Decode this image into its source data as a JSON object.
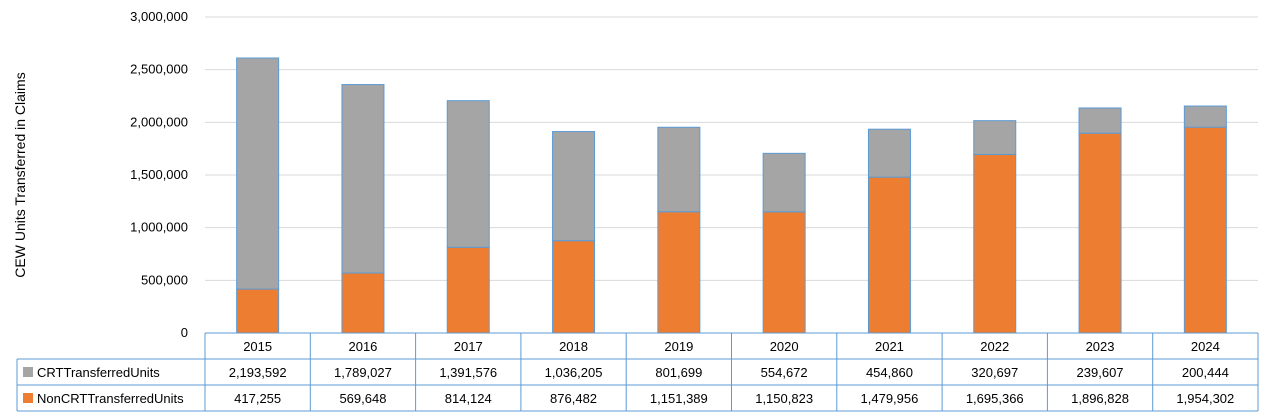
{
  "chart_data": {
    "type": "bar",
    "stacked": true,
    "title": "",
    "xlabel": "",
    "ylabel": "CEW Units Transferred in Claims",
    "ylim": [
      0,
      3000000
    ],
    "y_ticks": [
      0,
      500000,
      1000000,
      1500000,
      2000000,
      2500000,
      3000000
    ],
    "y_tick_labels": [
      "0",
      "500,000",
      "1,000,000",
      "1,500,000",
      "2,000,000",
      "2,500,000",
      "3,000,000"
    ],
    "categories": [
      "2015",
      "2016",
      "2017",
      "2018",
      "2019",
      "2020",
      "2021",
      "2022",
      "2023",
      "2024"
    ],
    "series": [
      {
        "name": "NonCRTTransferredUnits",
        "color": "#ED7D31",
        "values": [
          417255,
          569648,
          814124,
          876482,
          1151389,
          1150823,
          1479956,
          1695366,
          1896828,
          1954302
        ],
        "labels": [
          "417,255",
          "569,648",
          "814,124",
          "876,482",
          "1,151,389",
          "1,150,823",
          "1,479,956",
          "1,695,366",
          "1,896,828",
          "1,954,302"
        ]
      },
      {
        "name": "CRTTransferredUnits",
        "color": "#A5A5A5",
        "values": [
          2193592,
          1789027,
          1391576,
          1036205,
          801699,
          554672,
          454860,
          320697,
          239607,
          200444
        ],
        "labels": [
          "2,193,592",
          "1,789,027",
          "1,391,576",
          "1,036,205",
          "801,699",
          "554,672",
          "454,860",
          "320,697",
          "239,607",
          "200,444"
        ]
      }
    ],
    "table_rows": [
      "CRTTransferredUnits",
      "NonCRTTransferredUnits"
    ],
    "grid": true,
    "legend": "data-table"
  }
}
